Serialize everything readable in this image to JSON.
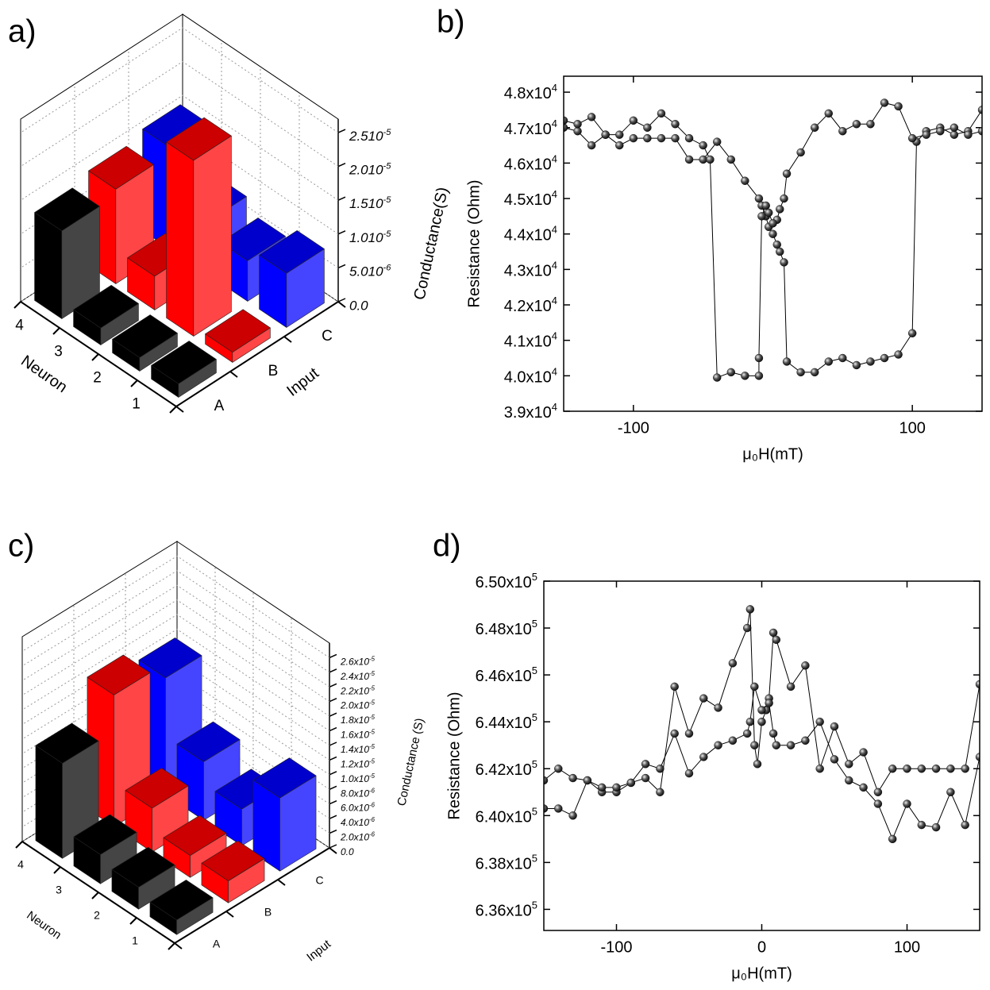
{
  "chart_data": [
    {
      "type": "bar3d",
      "label": "a)",
      "xlabel": "Neuron",
      "ylabel": "Input",
      "zlabel": "Conductance(S)",
      "categories": [
        "1",
        "2",
        "3",
        "4"
      ],
      "series": [
        {
          "name": "A",
          "color": "#000000",
          "values": [
            2e-06,
            2e-06,
            2.5e-06,
            1.3e-05
          ]
        },
        {
          "name": "B",
          "color": "#ff0000",
          "values": [
            1.5e-06,
            2.6e-05,
            5e-06,
            1.4e-05
          ]
        },
        {
          "name": "C",
          "color": "#0000ff",
          "values": [
            8e-06,
            6e-06,
            8e-06,
            1.5e-05
          ]
        }
      ],
      "zlim": [
        0,
        2.7e-05
      ],
      "zticks": [
        {
          "value": 0,
          "label": "0.0"
        },
        {
          "value": 5e-06,
          "label": "5.010-6"
        },
        {
          "value": 1e-05,
          "label": "1.010-5"
        },
        {
          "value": 1.5e-05,
          "label": "1.510-5"
        },
        {
          "value": 2e-05,
          "label": "2.010-5"
        },
        {
          "value": 2.5e-05,
          "label": "2.510-5"
        }
      ],
      "grid": true
    },
    {
      "type": "line",
      "label": "b)",
      "xlabel": "μ₀H(mT)",
      "ylabel": "Resistance (Ohm)",
      "xlim": [
        -150,
        150
      ],
      "xticks": [
        -100,
        100
      ],
      "ylim": [
        39000,
        48450
      ],
      "yticks": [
        {
          "value": 39000,
          "label": "3.9x104"
        },
        {
          "value": 40000,
          "label": "4.0x104"
        },
        {
          "value": 41000,
          "label": "4.1x104"
        },
        {
          "value": 42000,
          "label": "4.2x104"
        },
        {
          "value": 43000,
          "label": "4.3x104"
        },
        {
          "value": 44000,
          "label": "4.4x104"
        },
        {
          "value": 45000,
          "label": "4.5x104"
        },
        {
          "value": 46000,
          "label": "4.6x104"
        },
        {
          "value": 47000,
          "label": "4.7x104"
        },
        {
          "value": 48000,
          "label": "4.8x104"
        }
      ],
      "series": [
        {
          "color": "#000000",
          "x": [
            -150,
            -140,
            -130,
            -120,
            -110,
            -100,
            -90,
            -80,
            -70,
            -60,
            -50,
            -40,
            -30,
            -20,
            -10,
            -8,
            -5,
            -3,
            0,
            3,
            5,
            8,
            10,
            20,
            30,
            40,
            50,
            60,
            70,
            80,
            90,
            100,
            103,
            110,
            120,
            130,
            140,
            150
          ],
          "values": [
            47000,
            46900,
            46500,
            46800,
            46500,
            46700,
            46700,
            46700,
            46700,
            46100,
            46100,
            46600,
            46100,
            45500,
            45000,
            44800,
            44500,
            44200,
            44000,
            43700,
            43500,
            43200,
            40400,
            40100,
            40100,
            40400,
            40500,
            40300,
            40400,
            40500,
            40600,
            41200,
            46600,
            46900,
            47000,
            46800,
            46900,
            47500
          ]
        },
        {
          "color": "#000000",
          "x": [
            150,
            140,
            130,
            120,
            110,
            100,
            90,
            80,
            70,
            60,
            50,
            40,
            30,
            20,
            10,
            8,
            5,
            3,
            0,
            -3,
            -5,
            -8,
            -10,
            -10,
            -20,
            -30,
            -40,
            -45,
            -50,
            -60,
            -70,
            -80,
            -90,
            -100,
            -110,
            -120,
            -130,
            -140,
            -150
          ],
          "values": [
            46900,
            46800,
            47000,
            46900,
            46800,
            46700,
            47600,
            47700,
            47100,
            47100,
            46900,
            47400,
            47000,
            46300,
            45700,
            45000,
            44700,
            44400,
            44300,
            44600,
            44800,
            44500,
            40500,
            40000,
            40000,
            40100,
            39950,
            46100,
            46500,
            46700,
            47100,
            47400,
            47000,
            47200,
            46800,
            46800,
            47300,
            47100,
            47200
          ]
        }
      ]
    },
    {
      "type": "bar3d",
      "label": "c)",
      "xlabel": "Neuron",
      "ylabel": "Input",
      "zlabel": "Conductance (S)",
      "categories": [
        "1",
        "2",
        "3",
        "4"
      ],
      "series": [
        {
          "name": "A",
          "color": "#000000",
          "values": [
            2e-06,
            3e-06,
            4e-06,
            1.3e-05
          ]
        },
        {
          "name": "B",
          "color": "#ff0000",
          "values": [
            3e-06,
            3e-06,
            6e-06,
            1.8e-05
          ]
        },
        {
          "name": "C",
          "color": "#0000ff",
          "values": [
            1e-05,
            5e-06,
            8e-06,
            1.6e-05
          ]
        }
      ],
      "zlim": [
        0,
        2.8e-05
      ],
      "zticks": [
        {
          "value": 0,
          "label": "0.0"
        },
        {
          "value": 2e-06,
          "label": "2.0x10-6"
        },
        {
          "value": 4e-06,
          "label": "4.0x10-6"
        },
        {
          "value": 6e-06,
          "label": "6.0x10-6"
        },
        {
          "value": 8e-06,
          "label": "8.0x10-6"
        },
        {
          "value": 1e-05,
          "label": "1.0x10-5"
        },
        {
          "value": 1.2e-05,
          "label": "1.2x10-5"
        },
        {
          "value": 1.4e-05,
          "label": "1.4x10-5"
        },
        {
          "value": 1.6e-05,
          "label": "1.6x10-5"
        },
        {
          "value": 1.8e-05,
          "label": "1.8x10-5"
        },
        {
          "value": 2e-05,
          "label": "2.0x10-5"
        },
        {
          "value": 2.2e-05,
          "label": "2.2x10-5"
        },
        {
          "value": 2.4e-05,
          "label": "2.4x10-5"
        },
        {
          "value": 2.6e-05,
          "label": "2.6x10-5"
        }
      ],
      "grid": true
    },
    {
      "type": "line",
      "label": "d)",
      "xlabel": "μ₀H(mT)",
      "ylabel": "Resistance (Ohm)",
      "xlim": [
        -150,
        150
      ],
      "xticks": [
        -100,
        0,
        100
      ],
      "ylim": [
        635100,
        650000
      ],
      "yticks": [
        {
          "value": 636000,
          "label": "6.36x105"
        },
        {
          "value": 638000,
          "label": "6.38x105"
        },
        {
          "value": 640000,
          "label": "6.40x105"
        },
        {
          "value": 642000,
          "label": "6.42x105"
        },
        {
          "value": 644000,
          "label": "6.44x105"
        },
        {
          "value": 646000,
          "label": "6.46x105"
        },
        {
          "value": 648000,
          "label": "6.48x105"
        },
        {
          "value": 650000,
          "label": "6.50x105"
        }
      ],
      "series": [
        {
          "color": "#000000",
          "x": [
            -150,
            -140,
            -130,
            -120,
            -110,
            -100,
            -90,
            -80,
            -70,
            -60,
            -50,
            -40,
            -30,
            -20,
            -10,
            -8,
            -5,
            -3,
            0,
            3,
            5,
            8,
            10,
            20,
            30,
            40,
            50,
            60,
            70,
            80,
            90,
            100,
            110,
            120,
            130,
            140,
            150
          ],
          "values": [
            641500,
            642000,
            641600,
            641500,
            641000,
            641000,
            641400,
            641600,
            641000,
            645500,
            643500,
            645000,
            644600,
            646500,
            648000,
            648800,
            643000,
            642200,
            644000,
            644500,
            645000,
            647800,
            647500,
            645500,
            646400,
            642000,
            643800,
            642200,
            642700,
            641000,
            642000,
            642000,
            642000,
            642000,
            642000,
            642000,
            645600
          ]
        },
        {
          "color": "#000000",
          "x": [
            -150,
            -140,
            -130,
            -120,
            -110,
            -100,
            -90,
            -80,
            -70,
            -60,
            -50,
            -40,
            -30,
            -20,
            -10,
            -8,
            -5,
            0,
            5,
            8,
            10,
            20,
            30,
            40,
            50,
            60,
            70,
            80,
            90,
            100,
            110,
            120,
            130,
            140,
            150
          ],
          "values": [
            640300,
            640300,
            640000,
            641500,
            641200,
            641200,
            641400,
            642200,
            642000,
            643500,
            641800,
            642500,
            643000,
            643200,
            643500,
            644000,
            645500,
            644500,
            644800,
            643500,
            643000,
            643000,
            643200,
            644000,
            642400,
            641500,
            641200,
            640500,
            639000,
            640500,
            639600,
            639500,
            641000,
            639600,
            642500
          ]
        }
      ]
    }
  ]
}
